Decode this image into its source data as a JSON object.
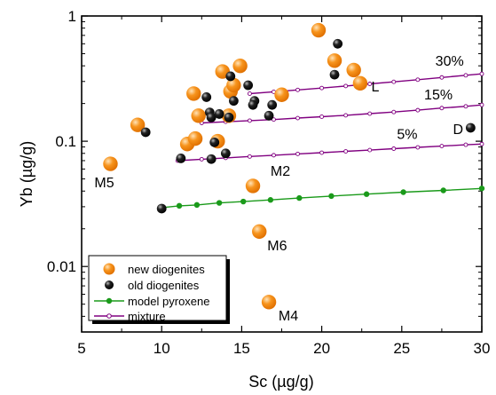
{
  "chart_data": {
    "type": "scatter",
    "xlabel": "Sc (µg/g)",
    "ylabel": "Yb (µg/g)",
    "xlim": [
      5,
      30
    ],
    "ylim": [
      0.003,
      1
    ],
    "y_scale": "log",
    "x_ticks": [
      5,
      10,
      15,
      20,
      25,
      30
    ],
    "y_ticks": [
      {
        "value": 0.01,
        "label": "0.01"
      },
      {
        "value": 0.1,
        "label": "0.1"
      },
      {
        "value": 1,
        "label": "1"
      }
    ],
    "grid": false,
    "legend_position": "bottom-left",
    "series": [
      {
        "name": "new diogenites",
        "kind": "points",
        "color": "#f7941d",
        "points": [
          {
            "x": 6.8,
            "y": 0.066
          },
          {
            "x": 8.5,
            "y": 0.135
          },
          {
            "x": 11.6,
            "y": 0.095
          },
          {
            "x": 12.1,
            "y": 0.105
          },
          {
            "x": 12.0,
            "y": 0.24
          },
          {
            "x": 12.3,
            "y": 0.16
          },
          {
            "x": 13.5,
            "y": 0.1
          },
          {
            "x": 13.8,
            "y": 0.36
          },
          {
            "x": 14.3,
            "y": 0.25
          },
          {
            "x": 14.5,
            "y": 0.28
          },
          {
            "x": 14.9,
            "y": 0.4
          },
          {
            "x": 14.2,
            "y": 0.16
          },
          {
            "x": 17.5,
            "y": 0.235
          },
          {
            "x": 19.8,
            "y": 0.77
          },
          {
            "x": 20.8,
            "y": 0.44
          },
          {
            "x": 22.0,
            "y": 0.37
          },
          {
            "x": 22.4,
            "y": 0.29
          },
          {
            "x": 15.7,
            "y": 0.044
          },
          {
            "x": 16.1,
            "y": 0.019
          },
          {
            "x": 16.7,
            "y": 0.0052
          }
        ]
      },
      {
        "name": "old diogenites",
        "kind": "points",
        "color": "#000000",
        "points": [
          {
            "x": 9.0,
            "y": 0.118
          },
          {
            "x": 10.0,
            "y": 0.029
          },
          {
            "x": 11.2,
            "y": 0.073
          },
          {
            "x": 12.8,
            "y": 0.225
          },
          {
            "x": 13.0,
            "y": 0.17
          },
          {
            "x": 13.1,
            "y": 0.155
          },
          {
            "x": 13.6,
            "y": 0.165
          },
          {
            "x": 13.3,
            "y": 0.098
          },
          {
            "x": 13.1,
            "y": 0.072
          },
          {
            "x": 14.0,
            "y": 0.08
          },
          {
            "x": 14.2,
            "y": 0.155
          },
          {
            "x": 14.3,
            "y": 0.33
          },
          {
            "x": 14.5,
            "y": 0.21
          },
          {
            "x": 15.4,
            "y": 0.28
          },
          {
            "x": 15.8,
            "y": 0.21
          },
          {
            "x": 15.7,
            "y": 0.195
          },
          {
            "x": 16.7,
            "y": 0.16
          },
          {
            "x": 16.9,
            "y": 0.195
          },
          {
            "x": 20.8,
            "y": 0.34
          },
          {
            "x": 21.0,
            "y": 0.6
          },
          {
            "x": 29.3,
            "y": 0.128
          }
        ]
      },
      {
        "name": "model pyroxene",
        "kind": "line",
        "color": "#1a9a1a",
        "points": [
          {
            "x": 10.0,
            "y": 0.0295
          },
          {
            "x": 11.1,
            "y": 0.0305
          },
          {
            "x": 12.2,
            "y": 0.031
          },
          {
            "x": 13.6,
            "y": 0.0322
          },
          {
            "x": 15.1,
            "y": 0.033
          },
          {
            "x": 16.8,
            "y": 0.034
          },
          {
            "x": 18.6,
            "y": 0.0352
          },
          {
            "x": 20.6,
            "y": 0.0365
          },
          {
            "x": 22.8,
            "y": 0.0378
          },
          {
            "x": 25.1,
            "y": 0.0392
          },
          {
            "x": 27.6,
            "y": 0.0405
          },
          {
            "x": 30.0,
            "y": 0.042
          }
        ]
      },
      {
        "name": "mixture",
        "kind": "line",
        "color": "#800080",
        "points": [
          {
            "x": 11.0,
            "y": 0.07
          },
          {
            "x": 12.5,
            "y": 0.0718
          },
          {
            "x": 14.0,
            "y": 0.0736
          },
          {
            "x": 15.5,
            "y": 0.0755
          },
          {
            "x": 17.0,
            "y": 0.0773
          },
          {
            "x": 18.5,
            "y": 0.0792
          },
          {
            "x": 20.0,
            "y": 0.081
          },
          {
            "x": 21.5,
            "y": 0.083
          },
          {
            "x": 23.0,
            "y": 0.085
          },
          {
            "x": 24.5,
            "y": 0.0872
          },
          {
            "x": 26.0,
            "y": 0.0893
          },
          {
            "x": 27.5,
            "y": 0.0915
          },
          {
            "x": 29.0,
            "y": 0.0937
          },
          {
            "x": 30.0,
            "y": 0.095
          }
        ],
        "extra_lines": [
          [
            {
              "x": 12.5,
              "y": 0.14
            },
            {
              "x": 14.0,
              "y": 0.143
            },
            {
              "x": 15.5,
              "y": 0.146
            },
            {
              "x": 17.0,
              "y": 0.149
            },
            {
              "x": 18.5,
              "y": 0.153
            },
            {
              "x": 20.0,
              "y": 0.157
            },
            {
              "x": 21.5,
              "y": 0.161
            },
            {
              "x": 23.0,
              "y": 0.166
            },
            {
              "x": 24.5,
              "y": 0.171
            },
            {
              "x": 26.0,
              "y": 0.177
            },
            {
              "x": 27.5,
              "y": 0.184
            },
            {
              "x": 29.0,
              "y": 0.19
            },
            {
              "x": 30.0,
              "y": 0.195
            }
          ],
          [
            {
              "x": 15.5,
              "y": 0.24
            },
            {
              "x": 17.0,
              "y": 0.248
            },
            {
              "x": 18.5,
              "y": 0.257
            },
            {
              "x": 20.0,
              "y": 0.266
            },
            {
              "x": 21.5,
              "y": 0.276
            },
            {
              "x": 23.0,
              "y": 0.287
            },
            {
              "x": 24.5,
              "y": 0.298
            },
            {
              "x": 26.0,
              "y": 0.31
            },
            {
              "x": 27.5,
              "y": 0.323
            },
            {
              "x": 29.0,
              "y": 0.336
            },
            {
              "x": 30.0,
              "y": 0.345
            }
          ]
        ]
      }
    ],
    "annotations": [
      {
        "text": "30%",
        "x": 27.1,
        "y": 0.4
      },
      {
        "text": "15%",
        "x": 26.4,
        "y": 0.215
      },
      {
        "text": "5%",
        "x": 24.7,
        "y": 0.104
      },
      {
        "text": "L",
        "x": 23.1,
        "y": 0.25
      },
      {
        "text": "D",
        "x": 28.2,
        "y": 0.114
      },
      {
        "text": "M5",
        "x": 5.8,
        "y": 0.043
      },
      {
        "text": "M2",
        "x": 16.8,
        "y": 0.053
      },
      {
        "text": "M6",
        "x": 16.6,
        "y": 0.0135
      },
      {
        "text": "M4",
        "x": 17.3,
        "y": 0.0037
      }
    ]
  }
}
